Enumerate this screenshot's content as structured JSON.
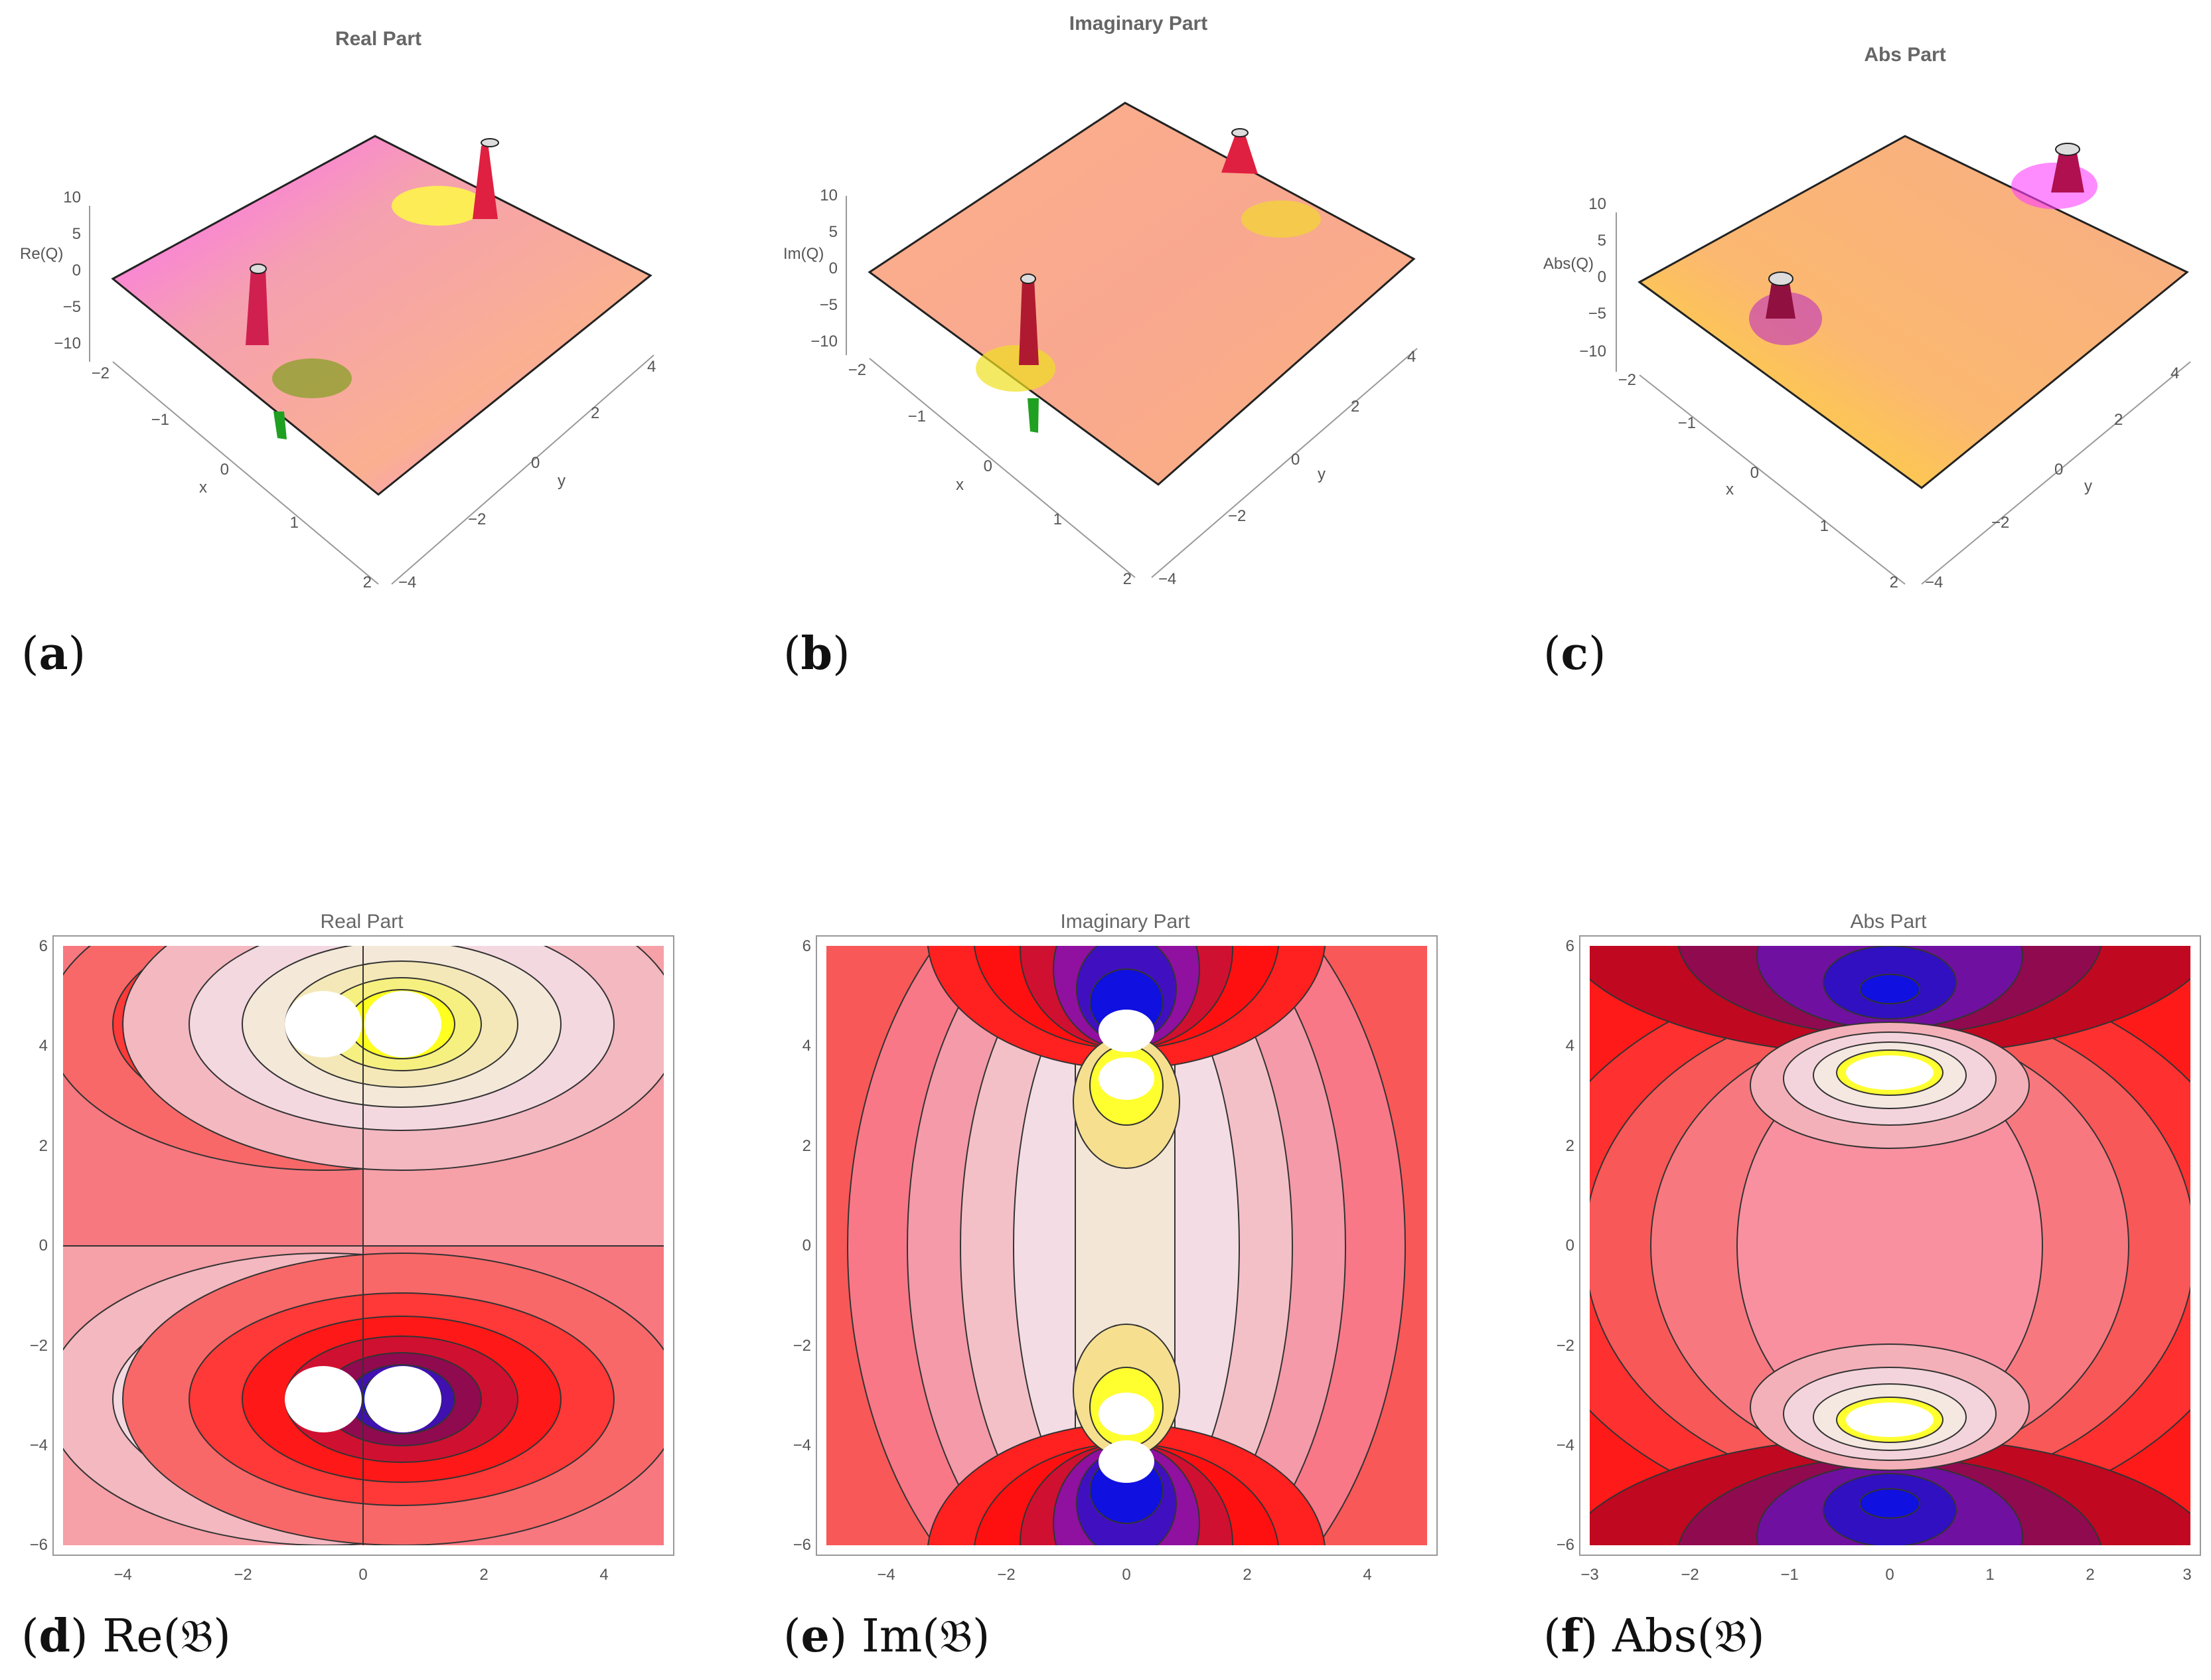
{
  "colors": {
    "pink": "#f29aa8",
    "red": "#ff2020",
    "blue": "#1010e0",
    "yellow": "#ffff10",
    "peach": "#f8b090",
    "magenta": "#ff40ff",
    "green": "#208020"
  },
  "chart_data": [
    {
      "type": "surface3d",
      "title": "Real Part",
      "zlabel": "Re(Q)",
      "xlabel": "x",
      "ylabel": "y",
      "x_ticks": [
        "−2",
        "−1",
        "0",
        "1",
        "2"
      ],
      "y_ticks": [
        "−4",
        "−2",
        "0",
        "2",
        "4"
      ],
      "z_ticks": [
        "10",
        "5",
        "0",
        "−5",
        "−10"
      ],
      "xlim": [
        -2,
        2
      ],
      "ylim": [
        -4,
        4
      ],
      "zlim": [
        -10,
        10
      ],
      "caption_label": "a",
      "caption_text": ""
    },
    {
      "type": "surface3d",
      "title": "Imaginary Part",
      "zlabel": "Im(Q)",
      "xlabel": "x",
      "ylabel": "y",
      "x_ticks": [
        "−2",
        "−1",
        "0",
        "1",
        "2"
      ],
      "y_ticks": [
        "−4",
        "−2",
        "0",
        "2",
        "4"
      ],
      "z_ticks": [
        "10",
        "5",
        "0",
        "−5",
        "−10"
      ],
      "xlim": [
        -2,
        2
      ],
      "ylim": [
        -4,
        4
      ],
      "zlim": [
        -10,
        10
      ],
      "caption_label": "b",
      "caption_text": ""
    },
    {
      "type": "surface3d",
      "title": "Abs Part",
      "zlabel": "Abs(Q)",
      "xlabel": "x",
      "ylabel": "y",
      "x_ticks": [
        "−2",
        "−1",
        "0",
        "1",
        "2"
      ],
      "y_ticks": [
        "−4",
        "−2",
        "0",
        "2",
        "4"
      ],
      "z_ticks": [
        "10",
        "5",
        "0",
        "−5",
        "−10"
      ],
      "xlim": [
        -2,
        2
      ],
      "ylim": [
        -4,
        4
      ],
      "zlim": [
        -10,
        10
      ],
      "caption_label": "c",
      "caption_text": ""
    },
    {
      "type": "contour",
      "title": "Real Part",
      "x_ticks": [
        "−4",
        "−2",
        "0",
        "2",
        "4"
      ],
      "y_ticks": [
        "6",
        "4",
        "2",
        "0",
        "−2",
        "−4",
        "−6"
      ],
      "xlim": [
        -5,
        5
      ],
      "ylim": [
        -6,
        6
      ],
      "caption_label": "d",
      "caption_text": "Re(𝔅)"
    },
    {
      "type": "contour",
      "title": "Imaginary Part",
      "x_ticks": [
        "−4",
        "−2",
        "0",
        "2",
        "4"
      ],
      "y_ticks": [
        "6",
        "4",
        "2",
        "0",
        "−2",
        "−4",
        "−6"
      ],
      "xlim": [
        -5,
        5
      ],
      "ylim": [
        -6,
        6
      ],
      "caption_label": "e",
      "caption_text": "Im(𝔅)"
    },
    {
      "type": "contour",
      "title": "Abs Part",
      "x_ticks": [
        "−3",
        "−2",
        "−1",
        "0",
        "1",
        "2",
        "3"
      ],
      "y_ticks": [
        "6",
        "4",
        "2",
        "0",
        "−2",
        "−4",
        "−6"
      ],
      "xlim": [
        -3,
        3
      ],
      "ylim": [
        -6,
        6
      ],
      "caption_label": "f",
      "caption_text": "Abs(𝔅)"
    }
  ]
}
